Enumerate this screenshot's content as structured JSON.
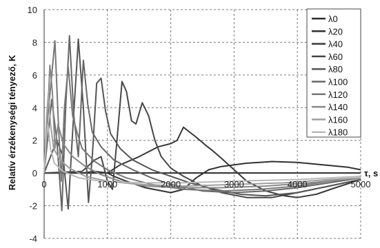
{
  "chart_data": {
    "type": "line",
    "title": "",
    "xlabel": "τ, s",
    "ylabel": "Relatív érzékenységi tényező, K",
    "xlim": [
      0,
      5000
    ],
    "ylim": [
      -4,
      10
    ],
    "x_ticks": [
      0,
      1000,
      2000,
      3000,
      4000,
      5000
    ],
    "y_ticks": [
      -4,
      -2,
      0,
      2,
      4,
      6,
      8,
      10
    ],
    "grid": true,
    "legend_position": "top-right",
    "series": [
      {
        "name": "λ0",
        "color": "#2a2a2a",
        "points": [
          [
            0,
            0
          ],
          [
            500,
            0
          ],
          [
            1000,
            0
          ],
          [
            1500,
            0
          ],
          [
            2000,
            0
          ],
          [
            2500,
            0
          ],
          [
            3000,
            0
          ],
          [
            3500,
            0
          ],
          [
            4000,
            0
          ],
          [
            4500,
            0
          ],
          [
            5000,
            0
          ]
        ]
      },
      {
        "name": "λ20",
        "color": "#303030",
        "points": [
          [
            0,
            0
          ],
          [
            800,
            0
          ],
          [
            1000,
            0
          ],
          [
            1100,
            -0.2
          ],
          [
            1300,
            -0.5
          ],
          [
            1600,
            -0.9
          ],
          [
            2000,
            -1.2
          ],
          [
            2200,
            -1.0
          ],
          [
            2400,
            -0.3
          ],
          [
            2600,
            0.2
          ],
          [
            2800,
            0.4
          ],
          [
            3200,
            0.6
          ],
          [
            3600,
            0.7
          ],
          [
            4000,
            0.65
          ],
          [
            4400,
            0.5
          ],
          [
            4800,
            0.35
          ],
          [
            5000,
            0.2
          ]
        ]
      },
      {
        "name": "λ40",
        "color": "#383838",
        "points": [
          [
            0,
            0
          ],
          [
            600,
            0
          ],
          [
            800,
            0.1
          ],
          [
            1000,
            0
          ],
          [
            1200,
            0.5
          ],
          [
            1500,
            1.0
          ],
          [
            1800,
            1.6
          ],
          [
            2000,
            1.8
          ],
          [
            2100,
            2.0
          ],
          [
            2200,
            2.8
          ],
          [
            2300,
            2.5
          ],
          [
            2400,
            2.2
          ],
          [
            2550,
            1.7
          ],
          [
            2650,
            1.4
          ],
          [
            2800,
            0.9
          ],
          [
            3000,
            0.2
          ],
          [
            3200,
            -0.5
          ],
          [
            3500,
            -1.1
          ],
          [
            3800,
            -1.4
          ],
          [
            4000,
            -1.5
          ],
          [
            4300,
            -1.3
          ],
          [
            4600,
            -0.9
          ],
          [
            5000,
            -0.4
          ]
        ]
      },
      {
        "name": "λ60",
        "color": "#454545",
        "points": [
          [
            0,
            0
          ],
          [
            600,
            0.1
          ],
          [
            800,
            0.8
          ],
          [
            900,
            1.0
          ],
          [
            1000,
            -0.5
          ],
          [
            1080,
            -1.0
          ],
          [
            1150,
            2.0
          ],
          [
            1230,
            5.6
          ],
          [
            1300,
            5.0
          ],
          [
            1380,
            3.2
          ],
          [
            1450,
            3.0
          ],
          [
            1550,
            4.3
          ],
          [
            1650,
            3.5
          ],
          [
            1750,
            2.0
          ],
          [
            1850,
            1.0
          ],
          [
            2000,
            0.3
          ],
          [
            2200,
            -0.2
          ],
          [
            2500,
            -0.8
          ],
          [
            2800,
            -1.2
          ],
          [
            3200,
            -1.5
          ],
          [
            3600,
            -1.5
          ],
          [
            4000,
            -1.2
          ],
          [
            4500,
            -0.8
          ],
          [
            5000,
            -0.4
          ]
        ]
      },
      {
        "name": "λ80",
        "color": "#555555",
        "points": [
          [
            0,
            0
          ],
          [
            200,
            2.0
          ],
          [
            300,
            1.0
          ],
          [
            380,
            -2.2
          ],
          [
            450,
            2.5
          ],
          [
            540,
            8.2
          ],
          [
            620,
            4.0
          ],
          [
            700,
            -1.8
          ],
          [
            760,
            1.0
          ],
          [
            830,
            5.5
          ],
          [
            900,
            5.8
          ],
          [
            970,
            3.8
          ],
          [
            1050,
            2.4
          ],
          [
            1200,
            1.5
          ],
          [
            1400,
            0.8
          ],
          [
            1700,
            0.2
          ],
          [
            2000,
            -0.2
          ],
          [
            2300,
            -0.6
          ],
          [
            2700,
            -1.0
          ],
          [
            3100,
            -1.3
          ],
          [
            3500,
            -1.4
          ],
          [
            4000,
            -1.2
          ],
          [
            4500,
            -0.8
          ],
          [
            5000,
            -0.4
          ]
        ]
      },
      {
        "name": "λ100",
        "color": "#666666",
        "points": [
          [
            0,
            0
          ],
          [
            120,
            4.5
          ],
          [
            200,
            2.0
          ],
          [
            280,
            -2.3
          ],
          [
            340,
            4.0
          ],
          [
            400,
            8.4
          ],
          [
            470,
            3.5
          ],
          [
            540,
            1.0
          ],
          [
            620,
            6.9
          ],
          [
            690,
            4.2
          ],
          [
            760,
            2.5
          ],
          [
            900,
            1.6
          ],
          [
            1100,
            0.8
          ],
          [
            1400,
            0.2
          ],
          [
            1700,
            -0.3
          ],
          [
            2000,
            -0.7
          ],
          [
            2500,
            -1.1
          ],
          [
            3000,
            -1.2
          ],
          [
            3500,
            -1.1
          ],
          [
            4000,
            -0.9
          ],
          [
            4500,
            -0.6
          ],
          [
            5000,
            -0.3
          ]
        ]
      },
      {
        "name": "λ120",
        "color": "#777777",
        "points": [
          [
            0,
            0
          ],
          [
            60,
            3.5
          ],
          [
            120,
            6.0
          ],
          [
            170,
            8.1
          ],
          [
            220,
            3.5
          ],
          [
            270,
            -0.5
          ],
          [
            320,
            4.0
          ],
          [
            380,
            6.5
          ],
          [
            450,
            3.5
          ],
          [
            520,
            2.5
          ],
          [
            600,
            1.5
          ],
          [
            800,
            0.7
          ],
          [
            1000,
            0.2
          ],
          [
            1300,
            -0.3
          ],
          [
            1700,
            -0.7
          ],
          [
            2200,
            -1.0
          ],
          [
            2800,
            -1.1
          ],
          [
            3400,
            -1.0
          ],
          [
            4000,
            -0.8
          ],
          [
            4500,
            -0.5
          ],
          [
            5000,
            -0.3
          ]
        ]
      },
      {
        "name": "λ140",
        "color": "#888888",
        "points": [
          [
            0,
            0
          ],
          [
            50,
            3.0
          ],
          [
            90,
            6.6
          ],
          [
            130,
            5.0
          ],
          [
            170,
            1.5
          ],
          [
            220,
            3.0
          ],
          [
            300,
            1.8
          ],
          [
            450,
            1.0
          ],
          [
            650,
            0.4
          ],
          [
            900,
            -0.1
          ],
          [
            1200,
            -0.5
          ],
          [
            1600,
            -0.8
          ],
          [
            2200,
            -0.9
          ],
          [
            2800,
            -0.9
          ],
          [
            3500,
            -0.8
          ],
          [
            4200,
            -0.6
          ],
          [
            5000,
            -0.3
          ]
        ]
      },
      {
        "name": "λ160",
        "color": "#9e9e9e",
        "points": [
          [
            0,
            0
          ],
          [
            40,
            3.5
          ],
          [
            70,
            5.0
          ],
          [
            100,
            3.0
          ],
          [
            150,
            1.5
          ],
          [
            250,
            0.8
          ],
          [
            400,
            0.3
          ],
          [
            650,
            -0.2
          ],
          [
            1000,
            -0.5
          ],
          [
            1500,
            -0.7
          ],
          [
            2200,
            -0.8
          ],
          [
            3000,
            -0.7
          ],
          [
            3800,
            -0.6
          ],
          [
            4500,
            -0.4
          ],
          [
            5000,
            -0.3
          ]
        ]
      },
      {
        "name": "λ180",
        "color": "#b8b8b8",
        "points": [
          [
            0,
            0
          ],
          [
            30,
            2.0
          ],
          [
            60,
            3.0
          ],
          [
            100,
            1.5
          ],
          [
            160,
            0.6
          ],
          [
            300,
            0.1
          ],
          [
            550,
            -0.3
          ],
          [
            900,
            -0.5
          ],
          [
            1500,
            -0.6
          ],
          [
            2200,
            -0.6
          ],
          [
            3000,
            -0.5
          ],
          [
            4000,
            -0.4
          ],
          [
            5000,
            -0.2
          ]
        ]
      }
    ]
  }
}
